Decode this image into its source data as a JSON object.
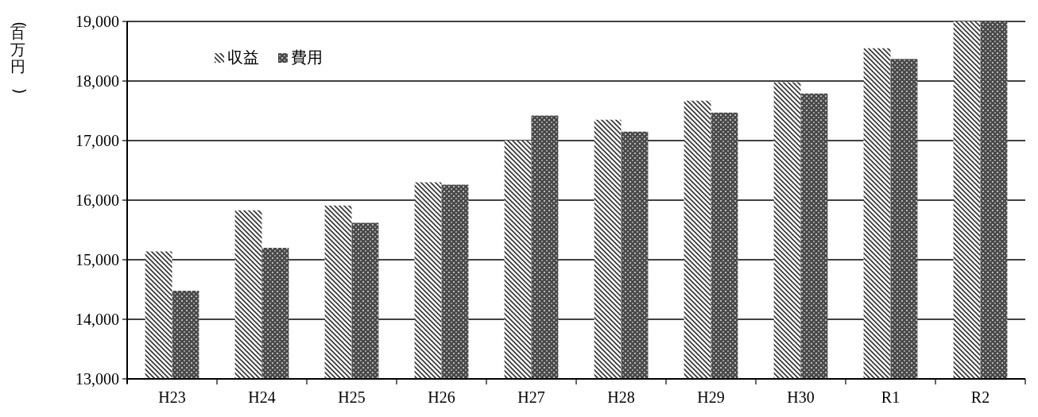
{
  "chart_data": {
    "type": "bar",
    "ylabel": "(百万円)",
    "categories": [
      "H23",
      "H24",
      "H25",
      "H26",
      "H27",
      "H28",
      "H29",
      "H30",
      "R1",
      "R2"
    ],
    "series": [
      {
        "name": "収益",
        "color": "#333333",
        "values": [
          15140,
          15830,
          15910,
          16300,
          17000,
          17350,
          17670,
          17980,
          18550,
          19000
        ]
      },
      {
        "name": "費用",
        "color": "#4a4a4a",
        "values": [
          14480,
          15200,
          15620,
          16260,
          17420,
          17150,
          17470,
          17790,
          18370,
          19000
        ]
      }
    ],
    "ylim": [
      13000,
      19000
    ],
    "yticks": [
      {
        "value": 13000,
        "label": "13,000"
      },
      {
        "value": 14000,
        "label": "14,000"
      },
      {
        "value": 15000,
        "label": "15,000"
      },
      {
        "value": 16000,
        "label": "16,000"
      },
      {
        "value": 17000,
        "label": "17,000"
      },
      {
        "value": 18000,
        "label": "18,000"
      },
      {
        "value": 19000,
        "label": "19,000"
      }
    ],
    "grid": "y",
    "legend": "top left"
  }
}
